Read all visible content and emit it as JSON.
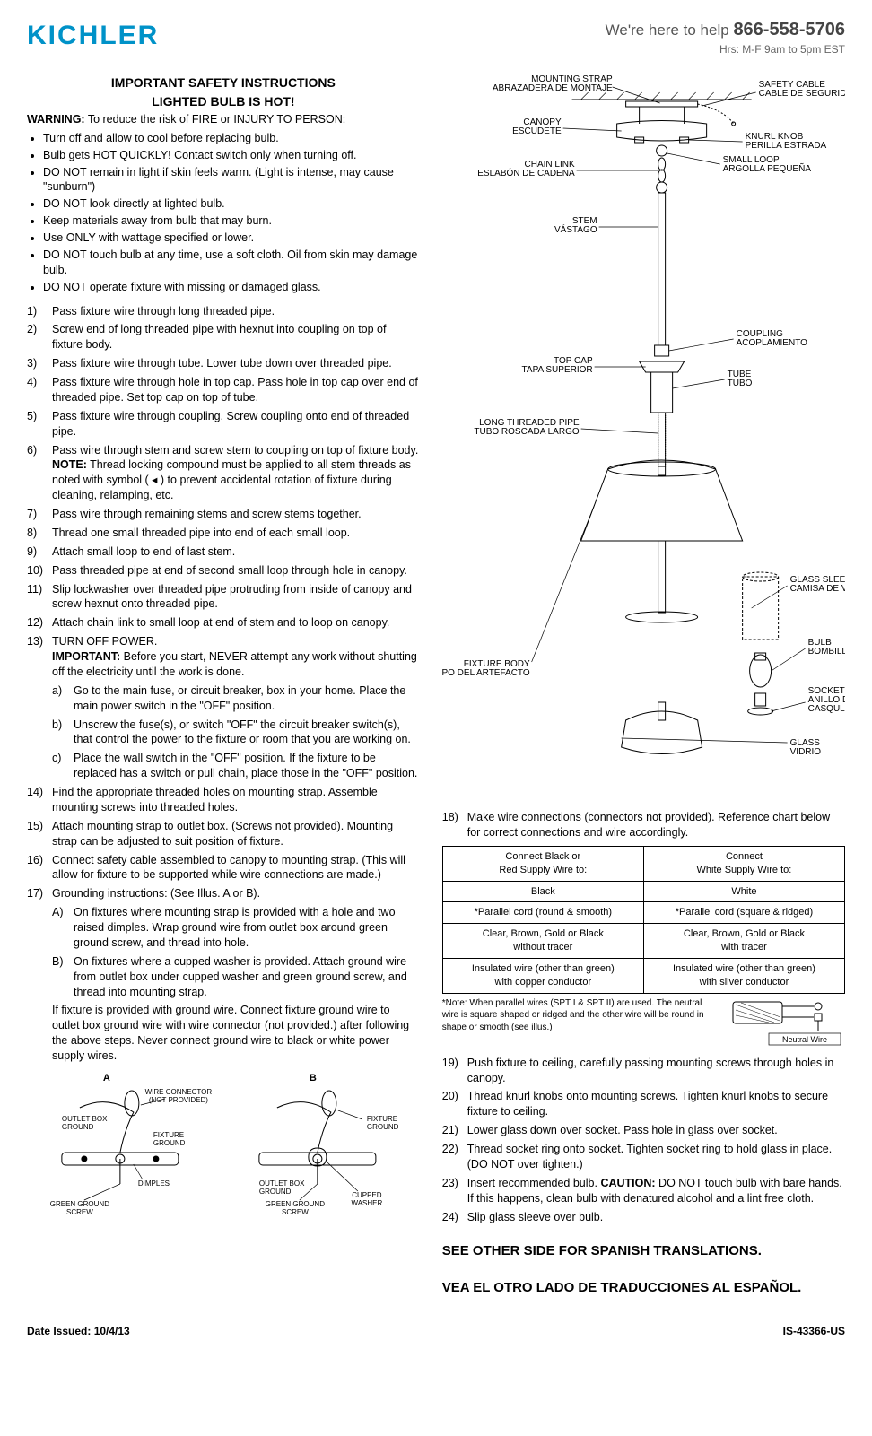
{
  "header": {
    "logo_text": "KICHLER",
    "logo_color": "#0092c8",
    "help_prefix": "We're here to help",
    "phone": "866-558-5706",
    "hours": "Hrs: M-F 9am to 5pm EST"
  },
  "safety": {
    "title1": "IMPORTANT SAFETY INSTRUCTIONS",
    "title2": "LIGHTED BULB IS HOT!",
    "warning_label": "WARNING:",
    "warning_text": " To reduce the risk of FIRE or INJURY TO PERSON:",
    "bullets": [
      "Turn off and allow to cool before replacing bulb.",
      "Bulb gets HOT QUICKLY! Contact switch only when turning off.",
      "DO NOT remain in light if skin feels warm. (Light is intense, may cause \"sunburn\")",
      "DO NOT look directly at lighted bulb.",
      "Keep materials away from bulb that may burn.",
      "Use ONLY with wattage specified or lower.",
      "DO NOT touch bulb at any time, use a soft cloth. Oil from skin may damage bulb.",
      "DO NOT operate fixture with missing or damaged glass."
    ]
  },
  "steps_left": [
    "Pass fixture wire through long threaded pipe.",
    "Screw end of long threaded pipe with hexnut into coupling on top of fixture body.",
    "Pass fixture wire through tube. Lower tube down over threaded pipe.",
    "Pass fixture wire through hole in top cap. Pass hole in top cap over end of threaded pipe. Set top cap on top of tube.",
    "Pass fixture wire through coupling. Screw coupling onto end of threaded pipe.",
    "Pass wire through stem and screw stem to coupling on top of fixture body. NOTE: Thread locking compound must be applied to all stem threads as noted with symbol ( ◂ ) to prevent accidental rotation of fixture during cleaning, relamping, etc.",
    "Pass wire through remaining stems and screw stems together.",
    "Thread one small threaded pipe into end of each small loop.",
    "Attach small loop to end of last stem.",
    "Pass threaded pipe at end of second small loop through hole in canopy.",
    "Slip lockwasher over threaded pipe protruding from inside of canopy and screw hexnut onto threaded pipe.",
    "Attach chain link to small loop at end of stem and to loop on canopy.",
    "TURN OFF POWER.\nIMPORTANT: Before you start, NEVER attempt any work without shutting off the electricity until the work is done.",
    "Find the appropriate threaded holes on mounting strap. Assemble mounting screws into threaded holes.",
    "Attach mounting strap to outlet box. (Screws not provided). Mounting strap can be adjusted to suit position of fixture.",
    "Connect safety cable assembled to canopy to mounting strap. (This will allow for fixture to be supported while wire connections are made.)",
    "Grounding instructions: (See Illus. A or B)."
  ],
  "step13_sub": [
    "Go to the main fuse, or circuit breaker, box in your home. Place the main power switch in the \"OFF\" position.",
    "Unscrew the fuse(s), or switch \"OFF\" the circuit breaker switch(s), that control the power to the fixture or room that you are working on.",
    "Place the wall switch in the \"OFF\" position. If the fixture to be replaced has a switch or pull chain, place those in the \"OFF\" position."
  ],
  "step17_sub": [
    "On fixtures where mounting strap is provided with a hole and two raised dimples. Wrap ground wire from outlet box around green ground screw, and thread into hole.",
    "On fixtures where a cupped washer is provided. Attach ground wire from outlet box under cupped washer and green ground screw, and thread into mounting strap."
  ],
  "step17_tail": "If fixture is provided with ground wire. Connect fixture ground wire to outlet box ground wire with wire connector (not provided.) after following the above steps. Never connect ground wire to black or white power supply wires.",
  "steps_right": {
    "s18": "Make wire connections (connectors not provided). Reference chart below for correct connections and wire accordingly.",
    "s19": "Push fixture to ceiling, carefully passing mounting screws through holes in canopy.",
    "s20": "Thread knurl knobs onto mounting screws. Tighten knurl knobs to secure fixture to ceiling.",
    "s21": "Lower glass down over socket. Pass hole in glass over socket.",
    "s22": "Thread socket ring onto socket. Tighten socket ring to hold glass in place. (DO NOT over tighten.)",
    "s23": "Insert recommended bulb. CAUTION: DO NOT touch bulb with bare hands. If this happens, clean bulb with denatured alcohol and a lint free cloth.",
    "s24": "Slip glass sleeve over bulb."
  },
  "wire_table": {
    "hdr_left": "Connect Black or\nRed Supply Wire to:",
    "hdr_right": "Connect\nWhite Supply Wire to:",
    "rows": [
      [
        "Black",
        "White"
      ],
      [
        "*Parallel cord (round & smooth)",
        "*Parallel cord (square & ridged)"
      ],
      [
        "Clear, Brown, Gold or Black\nwithout tracer",
        "Clear, Brown, Gold or Black\nwith tracer"
      ],
      [
        "Insulated wire (other than green)\nwith copper conductor",
        "Insulated wire (other than green)\nwith silver conductor"
      ]
    ]
  },
  "wire_note": "*Note: When parallel wires (SPT I & SPT II) are used. The neutral wire is square shaped or ridged and the other wire will be round in shape or smooth (see illus.)",
  "neutral_label": "Neutral Wire",
  "diagram_labels": {
    "mounting_strap": "MOUNTING STRAP\nABRAZADERA DE MONTAJE",
    "safety_cable": "SAFETY CABLE\nCABLE DE SEGURIDAD",
    "canopy": "CANOPY\nESCUDETE",
    "knurl_knob": "KNURL KNOB\nPERILLA ESTRADA",
    "chain_link": "CHAIN LINK\nESLABÓN DE CADENA",
    "small_loop": "SMALL LOOP\nARGOLLA PEQUEÑA",
    "stem": "STEM\nVÁSTAGO",
    "coupling": "COUPLING\nACOPLAMIENTO",
    "top_cap": "TOP CAP\nTAPA SUPERIOR",
    "tube": "TUBE\nTUBO",
    "long_pipe": "LONG THREADED PIPE\nTUBO ROSCADA LARGO",
    "glass_sleeve": "GLASS SLEEVE\nCAMISA DE VIDRIO",
    "bulb": "BULB\nBOMBILLA",
    "socket_ring": "SOCKET RING\nANILLO DEL\nCASQULLO",
    "fixture_body": "FIXTURE BODY\nCUERPO DEL ARTEFACTO",
    "glass": "GLASS\nVIDRIO"
  },
  "ground_labels": {
    "A": "A",
    "B": "B",
    "wire_connector": "WIRE CONNECTOR\n(NOT PROVIDED)",
    "outlet_box_ground": "OUTLET BOX\nGROUND",
    "fixture_ground": "FIXTURE\nGROUND",
    "dimples": "DIMPLES",
    "green_ground_screw": "GREEN GROUND\nSCREW",
    "cupped_washer": "CUPPED\nWASHER"
  },
  "footer": {
    "translate1": "SEE OTHER SIDE FOR SPANISH TRANSLATIONS.",
    "translate2": "VEA EL OTRO LADO DE TRADUCCIONES AL ESPAÑOL.",
    "date": "Date Issued: 10/4/13",
    "doc_id": "IS-43366-US"
  },
  "colors": {
    "text": "#000000",
    "logo": "#0092c8",
    "line": "#000000"
  }
}
